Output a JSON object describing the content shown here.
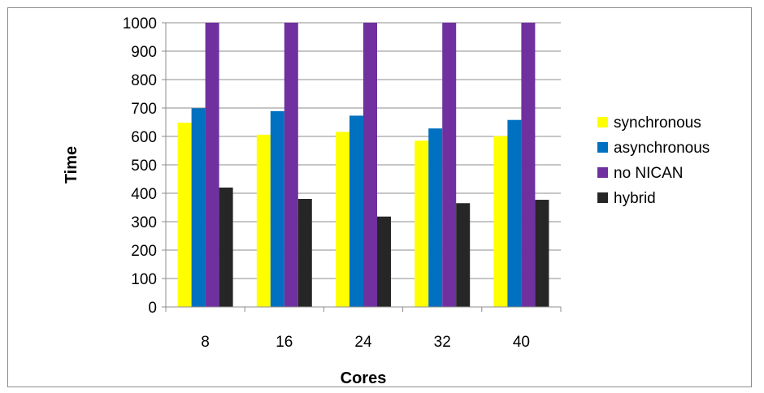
{
  "chart_data": {
    "type": "bar",
    "title": "",
    "xlabel": "Cores",
    "ylabel": "Time",
    "categories": [
      "8",
      "16",
      "24",
      "32",
      "40"
    ],
    "ylim": [
      0,
      1000
    ],
    "yticks": [
      0,
      100,
      200,
      300,
      400,
      500,
      600,
      700,
      800,
      900,
      1000
    ],
    "grid": true,
    "legend_position": "right",
    "series": [
      {
        "name": "synchronous",
        "color": "#ffff00",
        "values": [
          648,
          606,
          616,
          585,
          601
        ]
      },
      {
        "name": "asynchronous",
        "color": "#0070c0",
        "values": [
          699,
          689,
          673,
          628,
          658
        ]
      },
      {
        "name": "no NICAN",
        "color": "#7030a0",
        "values": [
          1000,
          1000,
          1000,
          1000,
          1000
        ]
      },
      {
        "name": "hybrid",
        "color": "#262626",
        "values": [
          420,
          380,
          318,
          365,
          377
        ]
      }
    ]
  }
}
